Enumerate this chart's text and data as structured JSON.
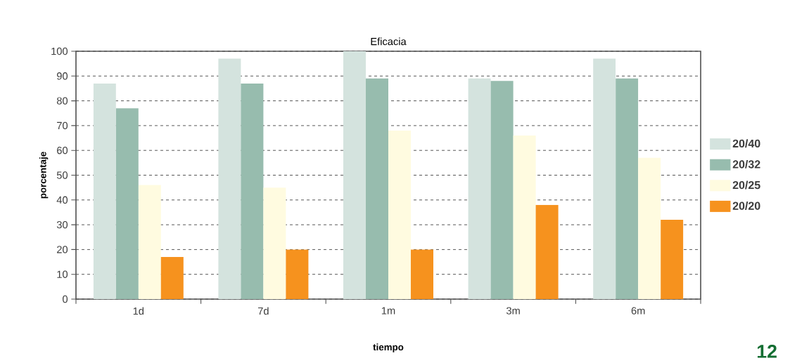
{
  "chart_data": {
    "type": "bar",
    "title": "Eficacia",
    "xlabel": "tiempo",
    "ylabel": "porcentaje",
    "categories": [
      "1d",
      "7d",
      "1m",
      "3m",
      "6m"
    ],
    "series": [
      {
        "name": "20/40",
        "color": "#d4e3de",
        "values": [
          87,
          97,
          100,
          89,
          97
        ]
      },
      {
        "name": "20/32",
        "color": "#97bcae",
        "values": [
          77,
          87,
          89,
          88,
          89
        ]
      },
      {
        "name": "20/25",
        "color": "#fffbe0",
        "values": [
          46,
          45,
          68,
          66,
          57
        ]
      },
      {
        "name": "20/20",
        "color": "#f6921e",
        "values": [
          17,
          20,
          20,
          38,
          32
        ]
      }
    ],
    "ylim": [
      0,
      100
    ],
    "yticks": [
      0,
      10,
      20,
      30,
      40,
      50,
      60,
      70,
      80,
      90,
      100
    ],
    "grid": "y",
    "legend": "right",
    "annotations": [
      "12"
    ]
  }
}
